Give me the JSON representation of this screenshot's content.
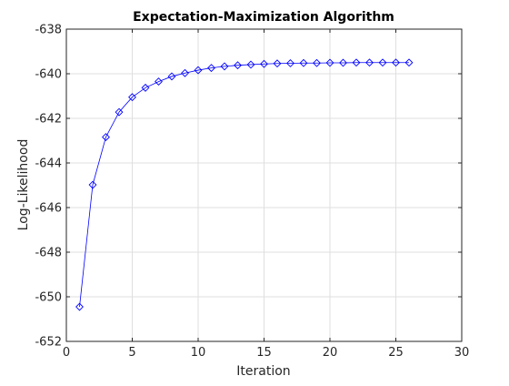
{
  "chart_data": {
    "type": "line",
    "title": "Expectation-Maximization Algorithm",
    "xlabel": "Iteration",
    "ylabel": "Log-Likelihood",
    "xlim": [
      0,
      30
    ],
    "ylim": [
      -652,
      -638
    ],
    "xticks": [
      0,
      5,
      10,
      15,
      20,
      25,
      30
    ],
    "yticks": [
      -652,
      -650,
      -648,
      -646,
      -644,
      -642,
      -640,
      -638
    ],
    "grid": true,
    "marker": "diamond",
    "series_color": "#0000ff",
    "series": [
      {
        "x": [
          1,
          2,
          3,
          4,
          5,
          6,
          7,
          8,
          9,
          10,
          11,
          12,
          13,
          14,
          15,
          16,
          17,
          18,
          19,
          20,
          21,
          22,
          23,
          24,
          25,
          26
        ],
        "values": [
          -650.45,
          -644.98,
          -642.84,
          -641.72,
          -641.05,
          -640.63,
          -640.35,
          -640.12,
          -639.97,
          -639.84,
          -639.74,
          -639.67,
          -639.62,
          -639.59,
          -639.56,
          -639.54,
          -639.53,
          -639.52,
          -639.52,
          -639.51,
          -639.51,
          -639.5,
          -639.5,
          -639.5,
          -639.5,
          -639.5
        ]
      }
    ]
  }
}
